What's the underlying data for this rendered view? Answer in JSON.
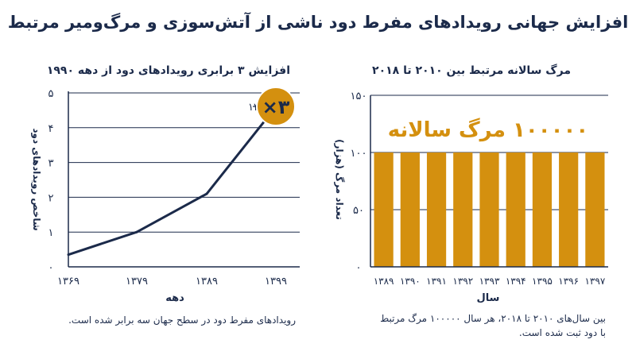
{
  "title": "افزایش جهانی رویدادهای مفرط دود ناشی از آتش‌سوزی و مرگ‌ومیر مرتبط",
  "colors": {
    "navy": "#1b2a4a",
    "gold": "#d4900f",
    "grid": "#1b2a4a"
  },
  "left_panel": {
    "caption": "رویدادهای مفرط دود در سطح جهان سه برابر شده است."
  },
  "right_panel": {
    "caption_line1": "بین سال‌های ۲۰۱۰ تا ۲۰۱۸، هر سال ۱۰۰۰۰۰ مرگ مرتبط",
    "caption_line2": "با دود ثبت شده است."
  },
  "chart_data": [
    {
      "type": "line",
      "title": "افزایش ۳ برابری رویدادهای دود از دهه ۱۹۹۰",
      "xlabel": "دهه",
      "ylabel": "شاخص رویدادهای دود",
      "x": [
        "۱۳۶۹",
        "۱۳۷۹",
        "۱۳۸۹",
        "۱۳۹۹"
      ],
      "y": [
        0.35,
        1.0,
        2.1,
        4.6
      ],
      "ylim": [
        0,
        5
      ],
      "yticks": [
        "۰",
        "۱",
        "۲",
        "۳",
        "۴",
        "۵"
      ],
      "grid": true,
      "annotation": {
        "label": "دهه ۱۳۹۰",
        "badge": "۳×",
        "at_index": 3
      }
    },
    {
      "type": "bar",
      "title": "مرگ سالانه مرتبط بین ۲۰۱۰ تا ۲۰۱۸",
      "xlabel": "سال",
      "ylabel": "تعداد مرگ (هزار)",
      "categories": [
        "۱۳۸۹",
        "۱۳۹۰",
        "۱۳۹۱",
        "۱۳۹۲",
        "۱۳۹۳",
        "۱۳۹۴",
        "۱۳۹۵",
        "۱۳۹۶",
        "۱۳۹۷"
      ],
      "values": [
        100,
        100,
        100,
        100,
        100,
        100,
        100,
        100,
        100
      ],
      "ylim": [
        0,
        150
      ],
      "yticks": [
        "۰",
        "۵۰",
        "۱۰۰",
        "۱۵۰"
      ],
      "grid": true,
      "annotation": "۱۰۰۰۰۰ مرگ سالانه"
    }
  ]
}
